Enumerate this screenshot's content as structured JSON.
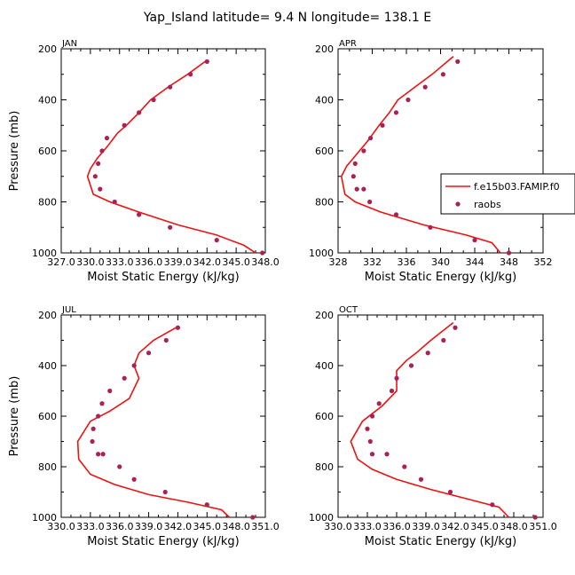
{
  "figure": {
    "title": "Yap_Island  latitude= 9.4 N longitude= 138.1 E"
  },
  "colors": {
    "model": "#ee1111",
    "obs": "#aa2255",
    "axis": "#000000"
  },
  "legend": {
    "model_label": "f.e15b03.FAMIP.f0",
    "obs_label": "raobs",
    "placement": "right of APR panel"
  },
  "chart_data": [
    {
      "type": "line",
      "panel": "JAN",
      "title": "JAN",
      "xlabel": "Moist Static Energy (kJ/kg)",
      "ylabel": "Pressure (mb)",
      "xlim": [
        327.0,
        348.0
      ],
      "ylim": [
        1000,
        200
      ],
      "xticks": [
        "327.0",
        "330.0",
        "333.0",
        "336.0",
        "339.0",
        "342.0",
        "345.0",
        "348.0"
      ],
      "yticks": [
        "200",
        "400",
        "600",
        "800",
        "1000"
      ],
      "series": [
        {
          "name": "f.e15b03.FAMIP.f0",
          "kind": "line",
          "x": [
            341.8,
            340.0,
            338.0,
            336.2,
            335.0,
            333.7,
            332.8,
            331.8,
            330.7,
            330.0,
            329.7,
            330.3,
            332.0,
            335.0,
            339.0,
            343.0,
            345.8,
            347.0
          ],
          "y": [
            250,
            300,
            350,
            400,
            450,
            500,
            530,
            580,
            630,
            670,
            700,
            770,
            800,
            840,
            890,
            930,
            970,
            1000
          ]
        },
        {
          "name": "raobs",
          "kind": "points",
          "x": [
            342.0,
            340.3,
            338.2,
            336.5,
            335.0,
            333.5,
            331.7,
            331.2,
            330.8,
            330.5,
            331.0,
            332.5,
            335.0,
            338.2,
            343.0,
            347.7
          ],
          "y": [
            250,
            300,
            350,
            400,
            450,
            500,
            550,
            600,
            650,
            700,
            750,
            800,
            850,
            900,
            950,
            1000
          ]
        }
      ]
    },
    {
      "type": "line",
      "panel": "APR",
      "title": "APR",
      "xlabel": "Moist Static Energy (kJ/kg)",
      "ylabel": "",
      "xlim": [
        328,
        352
      ],
      "ylim": [
        1000,
        200
      ],
      "xticks": [
        "328",
        "332",
        "336",
        "340",
        "344",
        "348",
        "352"
      ],
      "yticks": [
        "200",
        "400",
        "600",
        "800",
        "1000"
      ],
      "series": [
        {
          "name": "f.e15b03.FAMIP.f0",
          "kind": "line",
          "x": [
            341.5,
            339.0,
            337.0,
            335.0,
            334.0,
            332.8,
            331.5,
            330.0,
            329.0,
            328.4,
            328.8,
            330.0,
            333.0,
            338.0,
            343.0,
            346.0,
            347.0
          ],
          "y": [
            230,
            300,
            350,
            400,
            450,
            500,
            560,
            620,
            660,
            700,
            770,
            800,
            840,
            890,
            930,
            960,
            1000
          ]
        },
        {
          "name": "raobs",
          "kind": "points",
          "x": [
            342.0,
            340.3,
            338.2,
            336.2,
            334.8,
            333.2,
            331.8,
            331.0,
            330.0,
            329.8,
            330.2,
            331.0,
            331.7,
            334.8,
            338.8,
            344.0,
            348.0
          ],
          "y": [
            250,
            300,
            350,
            400,
            450,
            500,
            550,
            600,
            650,
            700,
            750,
            750,
            800,
            850,
            900,
            950,
            1000
          ]
        }
      ]
    },
    {
      "type": "line",
      "panel": "JUL",
      "title": "JUL",
      "xlabel": "Moist Static Energy (kJ/kg)",
      "ylabel": "Pressure (mb)",
      "xlim": [
        330.0,
        351.0
      ],
      "ylim": [
        1000,
        200
      ],
      "xticks": [
        "330.0",
        "333.0",
        "336.0",
        "339.0",
        "342.0",
        "345.0",
        "348.0",
        "351.0"
      ],
      "yticks": [
        "200",
        "400",
        "600",
        "800",
        "1000"
      ],
      "series": [
        {
          "name": "f.e15b03.FAMIP.f0",
          "kind": "line",
          "x": [
            341.8,
            339.5,
            338.0,
            337.5,
            338.0,
            337.0,
            335.0,
            333.0,
            331.7,
            331.8,
            333.0,
            335.5,
            339.0,
            343.0,
            346.5,
            347.3
          ],
          "y": [
            250,
            300,
            350,
            400,
            450,
            530,
            580,
            620,
            700,
            770,
            830,
            870,
            910,
            940,
            970,
            1000
          ]
        },
        {
          "name": "raobs",
          "kind": "points",
          "x": [
            342.0,
            340.8,
            339.0,
            337.5,
            336.5,
            335.0,
            334.2,
            333.8,
            333.3,
            333.2,
            333.8,
            334.3,
            336.0,
            337.5,
            340.7,
            345.0,
            349.7
          ],
          "y": [
            250,
            300,
            350,
            400,
            450,
            500,
            550,
            600,
            650,
            700,
            750,
            750,
            800,
            850,
            900,
            950,
            1000
          ]
        }
      ]
    },
    {
      "type": "line",
      "panel": "OCT",
      "title": "OCT",
      "xlabel": "Moist Static Energy (kJ/kg)",
      "ylabel": "",
      "xlim": [
        330.0,
        351.0
      ],
      "ylim": [
        1000,
        200
      ],
      "xticks": [
        "330.0",
        "333.0",
        "336.0",
        "339.0",
        "342.0",
        "345.0",
        "348.0",
        "351.0"
      ],
      "yticks": [
        "200",
        "400",
        "600",
        "800",
        "1000"
      ],
      "series": [
        {
          "name": "f.e15b03.FAMIP.f0",
          "kind": "line",
          "x": [
            341.8,
            339.5,
            338.0,
            337.0,
            336.0,
            336.0,
            334.5,
            332.5,
            331.3,
            332.0,
            333.5,
            336.0,
            339.5,
            343.5,
            346.5,
            347.5
          ],
          "y": [
            230,
            300,
            350,
            380,
            420,
            500,
            560,
            620,
            700,
            770,
            810,
            850,
            890,
            930,
            960,
            1000
          ]
        },
        {
          "name": "raobs",
          "kind": "points",
          "x": [
            342.0,
            340.8,
            339.2,
            337.5,
            336.0,
            335.5,
            334.2,
            333.5,
            333.0,
            333.3,
            333.5,
            335.0,
            336.8,
            338.5,
            341.5,
            345.8,
            350.2
          ],
          "y": [
            250,
            300,
            350,
            400,
            450,
            500,
            550,
            600,
            650,
            700,
            750,
            750,
            800,
            850,
            900,
            950,
            1000
          ]
        }
      ]
    }
  ]
}
